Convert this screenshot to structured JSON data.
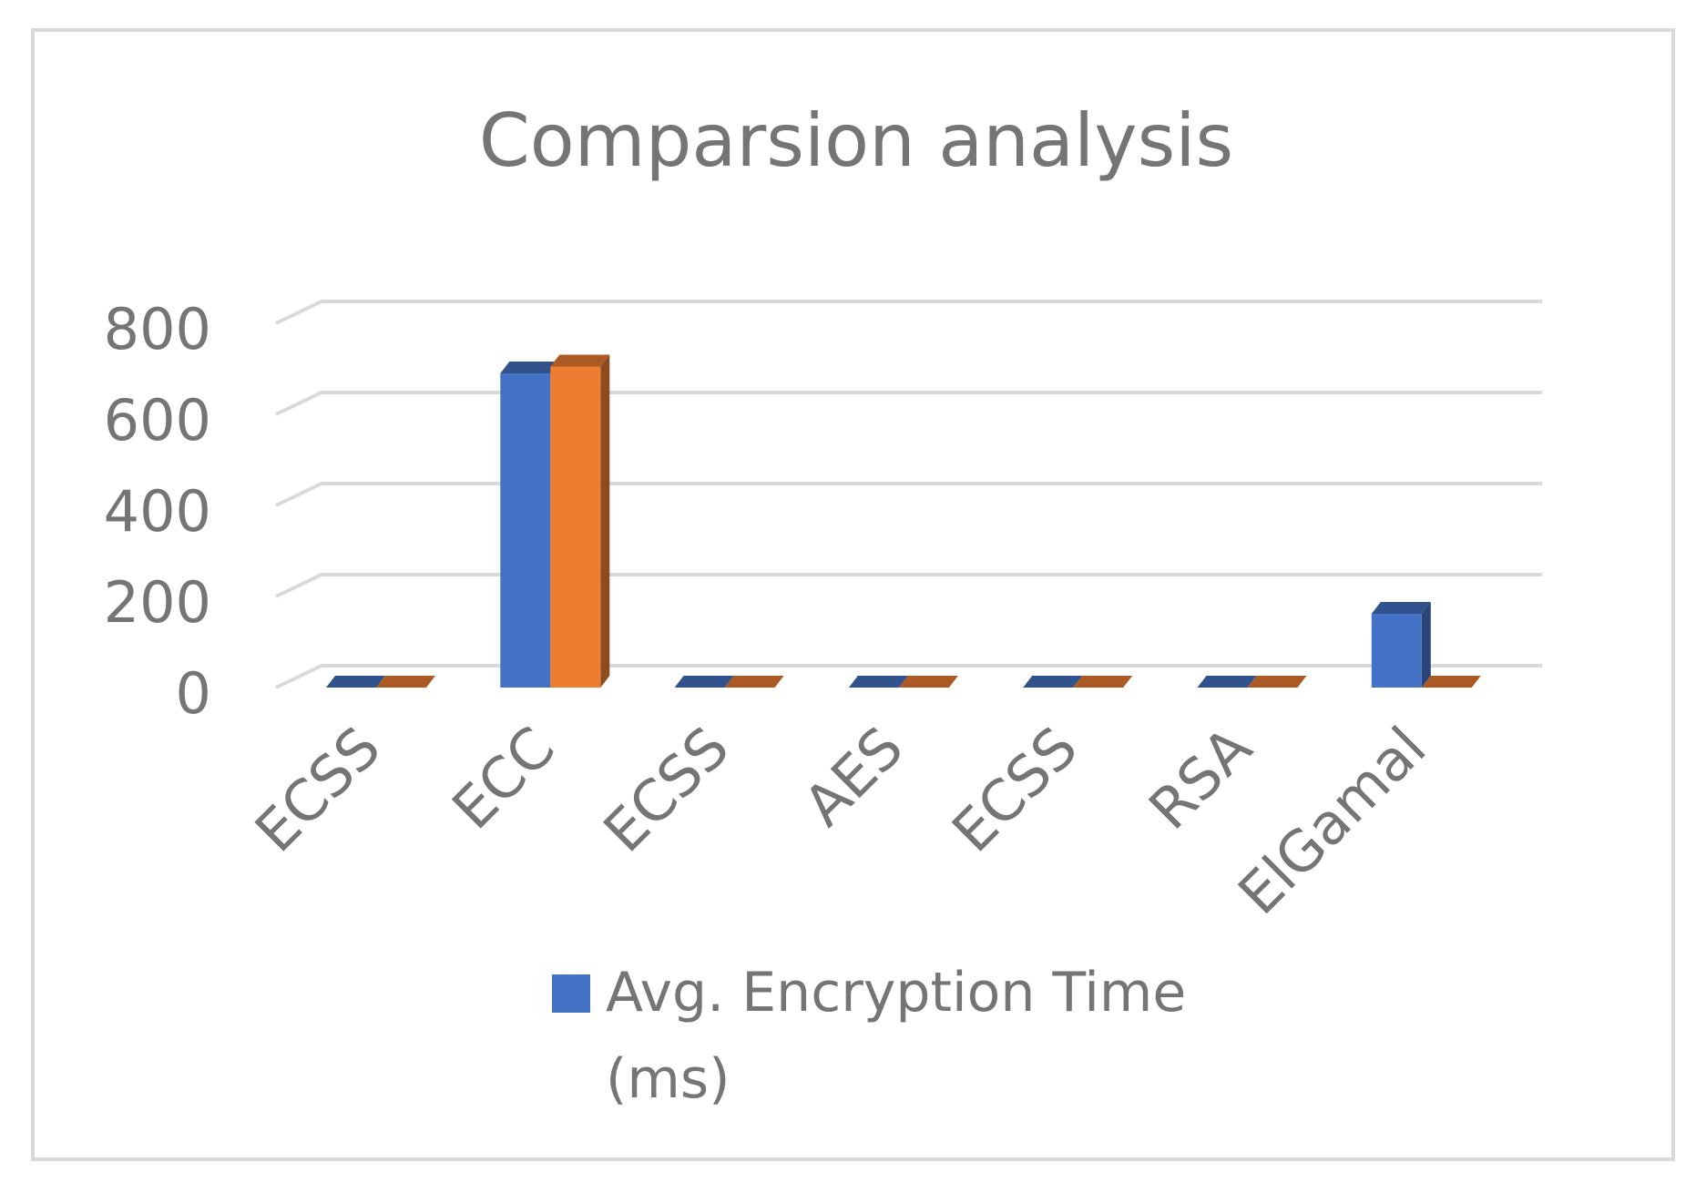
{
  "chart_data": {
    "type": "bar",
    "title": "Comparsion analysis",
    "categories": [
      "ECSS",
      "ECC",
      "ECSS",
      "AES",
      "ECSS",
      "RSA",
      "ElGamal"
    ],
    "series": [
      {
        "name": "Avg. Encryption Time (ms)",
        "legend_lines": [
          "Avg. Encryption Time",
          "(ms)"
        ],
        "color": "#4472C4",
        "values": [
          0,
          690,
          0,
          0,
          0,
          0,
          162
        ]
      },
      {
        "color": "#ED7D31",
        "values": [
          0,
          705,
          0,
          0,
          0,
          0,
          0
        ]
      }
    ],
    "yticks": [
      0,
      200,
      400,
      600,
      800
    ],
    "ylim": [
      0,
      800
    ],
    "grid": true,
    "legend": "bottom",
    "three_d": true
  },
  "colors": {
    "frame": "#D9D9D9",
    "gridline": "#D9D9D9",
    "text": "#757575"
  }
}
